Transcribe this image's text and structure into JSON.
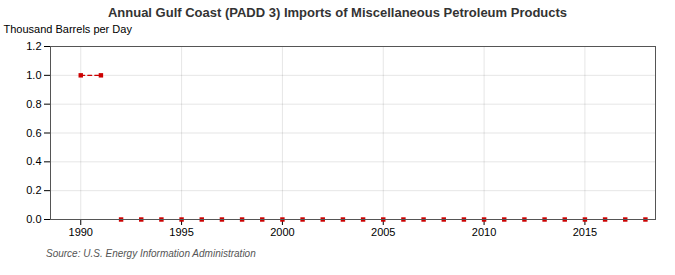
{
  "chart_data": {
    "type": "line",
    "title": "Annual Gulf Coast (PADD 3) Imports of Miscellaneous Petroleum Products",
    "ylabel": "Thousand Barrels per Day",
    "source": "Source: U.S. Energy Information Administration",
    "x": [
      1990,
      1991,
      1992,
      1993,
      1994,
      1995,
      1996,
      1997,
      1998,
      1999,
      2000,
      2001,
      2002,
      2003,
      2004,
      2005,
      2006,
      2007,
      2008,
      2009,
      2010,
      2011,
      2012,
      2013,
      2014,
      2015,
      2016,
      2017,
      2018
    ],
    "series": [
      {
        "color": "#cc0000",
        "values": [
          1.0,
          1.0,
          null,
          null,
          null,
          null,
          null,
          null,
          null,
          null,
          null,
          null,
          null,
          null,
          null,
          null,
          null,
          null,
          null,
          null,
          null,
          null,
          null,
          null,
          null,
          null,
          null,
          null,
          null
        ]
      },
      {
        "color": "#cc0000",
        "values": [
          null,
          null,
          0.0,
          0.0,
          0.0,
          0.0,
          0.0,
          0.0,
          0.0,
          0.0,
          0.0,
          0.0,
          0.0,
          0.0,
          0.0,
          0.0,
          0.0,
          0.0,
          0.0,
          0.0,
          0.0,
          0.0,
          0.0,
          0.0,
          0.0,
          0.0,
          0.0,
          0.0,
          0.0
        ]
      }
    ],
    "marker": "square",
    "line_style": "dashed",
    "xlim": [
      1988.5,
      2018.5
    ],
    "ylim": [
      0.0,
      1.2
    ],
    "xticks": [
      1990,
      1995,
      2000,
      2005,
      2010,
      2015
    ],
    "yticks": [
      {
        "value": 0.0,
        "label": "0.0"
      },
      0.2,
      0.4,
      0.6,
      0.8,
      {
        "value": 1.0,
        "label": "1.0"
      },
      1.2
    ],
    "grid": true
  }
}
